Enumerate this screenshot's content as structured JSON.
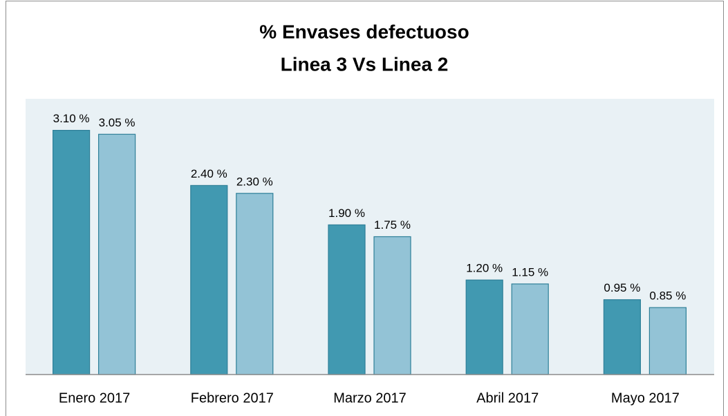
{
  "chart_data": {
    "type": "bar",
    "title": "% Envases defectuoso",
    "subtitle": "Linea 3 Vs Linea 2",
    "categories": [
      "Enero 2017",
      "Febrero 2017",
      "Marzo 2017",
      "Abril 2017",
      "Mayo 2017"
    ],
    "series": [
      {
        "color": "#4199b1",
        "values": [
          3.1,
          2.4,
          1.9,
          1.2,
          0.95
        ],
        "value_labels": [
          "3.10 %",
          "2.40 %",
          "1.90 %",
          "1.20 %",
          "0.95 %"
        ]
      },
      {
        "color": "#93c3d6",
        "values": [
          3.05,
          2.3,
          1.75,
          1.15,
          0.85
        ],
        "value_labels": [
          "3.05 %",
          "2.30 %",
          "1.75 %",
          "1.15 %",
          "0.85 %"
        ]
      }
    ],
    "ylim": [
      0,
      3.5
    ]
  }
}
